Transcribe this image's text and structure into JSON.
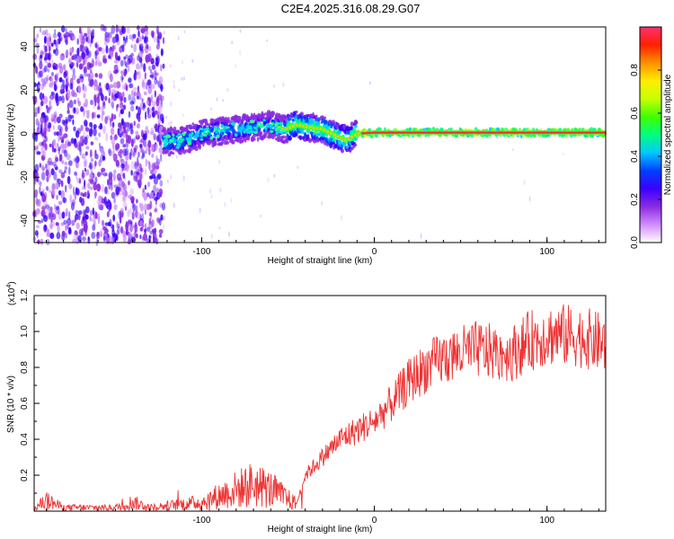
{
  "chart_data": [
    {
      "type": "heatmap",
      "title": "C2E4.2025.316.08.29.G07",
      "xlabel": "Height of straight line (km)",
      "ylabel": "Frequency (Hz)",
      "xlim": [
        -197,
        134
      ],
      "ylim": [
        -50,
        49
      ],
      "xticks": [
        -100,
        0,
        100
      ],
      "yticks": [
        -40,
        -20,
        0,
        20,
        40
      ],
      "colorbar": {
        "label": "Normalized spectral amplitude",
        "range": [
          0,
          1
        ],
        "ticks": [
          "0.0",
          "0.2",
          "0.4",
          "0.6",
          "0.8"
        ],
        "colors": [
          "#ffffff",
          "#d28cff",
          "#8a2be2",
          "#3a00ff",
          "#0040ff",
          "#00c8ff",
          "#00ff80",
          "#40ff00",
          "#c8ff00",
          "#ffee00",
          "#ff9000",
          "#ff2000",
          "#ff3070"
        ]
      },
      "ridge": {
        "description_free_points_km_hz": [
          [
            -122,
            -4
          ],
          [
            -110,
            -3
          ],
          [
            -100,
            0
          ],
          [
            -90,
            1
          ],
          [
            -80,
            2
          ],
          [
            -70,
            3
          ],
          [
            -60,
            4
          ],
          [
            -52,
            2
          ],
          [
            -45,
            4
          ],
          [
            -38,
            3
          ],
          [
            -30,
            2
          ],
          [
            -22,
            -1
          ],
          [
            -16,
            -3
          ],
          [
            -10,
            0
          ],
          [
            0,
            0.5
          ],
          [
            30,
            0.5
          ],
          [
            60,
            0.5
          ],
          [
            90,
            0.5
          ],
          [
            120,
            0.5
          ],
          [
            134,
            0.5
          ]
        ]
      },
      "noise_region_km": [
        -197,
        -122
      ]
    },
    {
      "type": "line",
      "xlabel": "Height of straight line (km)",
      "ylabel": "SNR (10 * v/v)",
      "scale_label": "(x10",
      "scale_exp": "4",
      "color": "#ee3333",
      "xlim": [
        -197,
        134
      ],
      "ylim": [
        0,
        12000
      ],
      "xticks": [
        -100,
        0,
        100
      ],
      "ytick_values": [
        2000,
        4000,
        6000,
        8000,
        10000,
        12000
      ],
      "ytick_labels": [
        "0.2",
        "0.4",
        "0.6",
        "0.8",
        "1.0",
        "1.2"
      ],
      "trend_km_snr": [
        [
          -197,
          150
        ],
        [
          -190,
          600
        ],
        [
          -180,
          200
        ],
        [
          -150,
          200
        ],
        [
          -140,
          500
        ],
        [
          -130,
          200
        ],
        [
          -120,
          300
        ],
        [
          -100,
          500
        ],
        [
          -80,
          1200
        ],
        [
          -70,
          1500
        ],
        [
          -60,
          1200
        ],
        [
          -45,
          400
        ],
        [
          -40,
          2000
        ],
        [
          -30,
          3000
        ],
        [
          -20,
          4000
        ],
        [
          -10,
          4500
        ],
        [
          0,
          5000
        ],
        [
          10,
          6000
        ],
        [
          20,
          7200
        ],
        [
          30,
          8000
        ],
        [
          40,
          8500
        ],
        [
          50,
          8800
        ],
        [
          60,
          9000
        ],
        [
          70,
          8800
        ],
        [
          80,
          8800
        ],
        [
          90,
          9500
        ],
        [
          100,
          9800
        ],
        [
          110,
          9800
        ],
        [
          120,
          9700
        ],
        [
          134,
          9300
        ]
      ]
    }
  ]
}
